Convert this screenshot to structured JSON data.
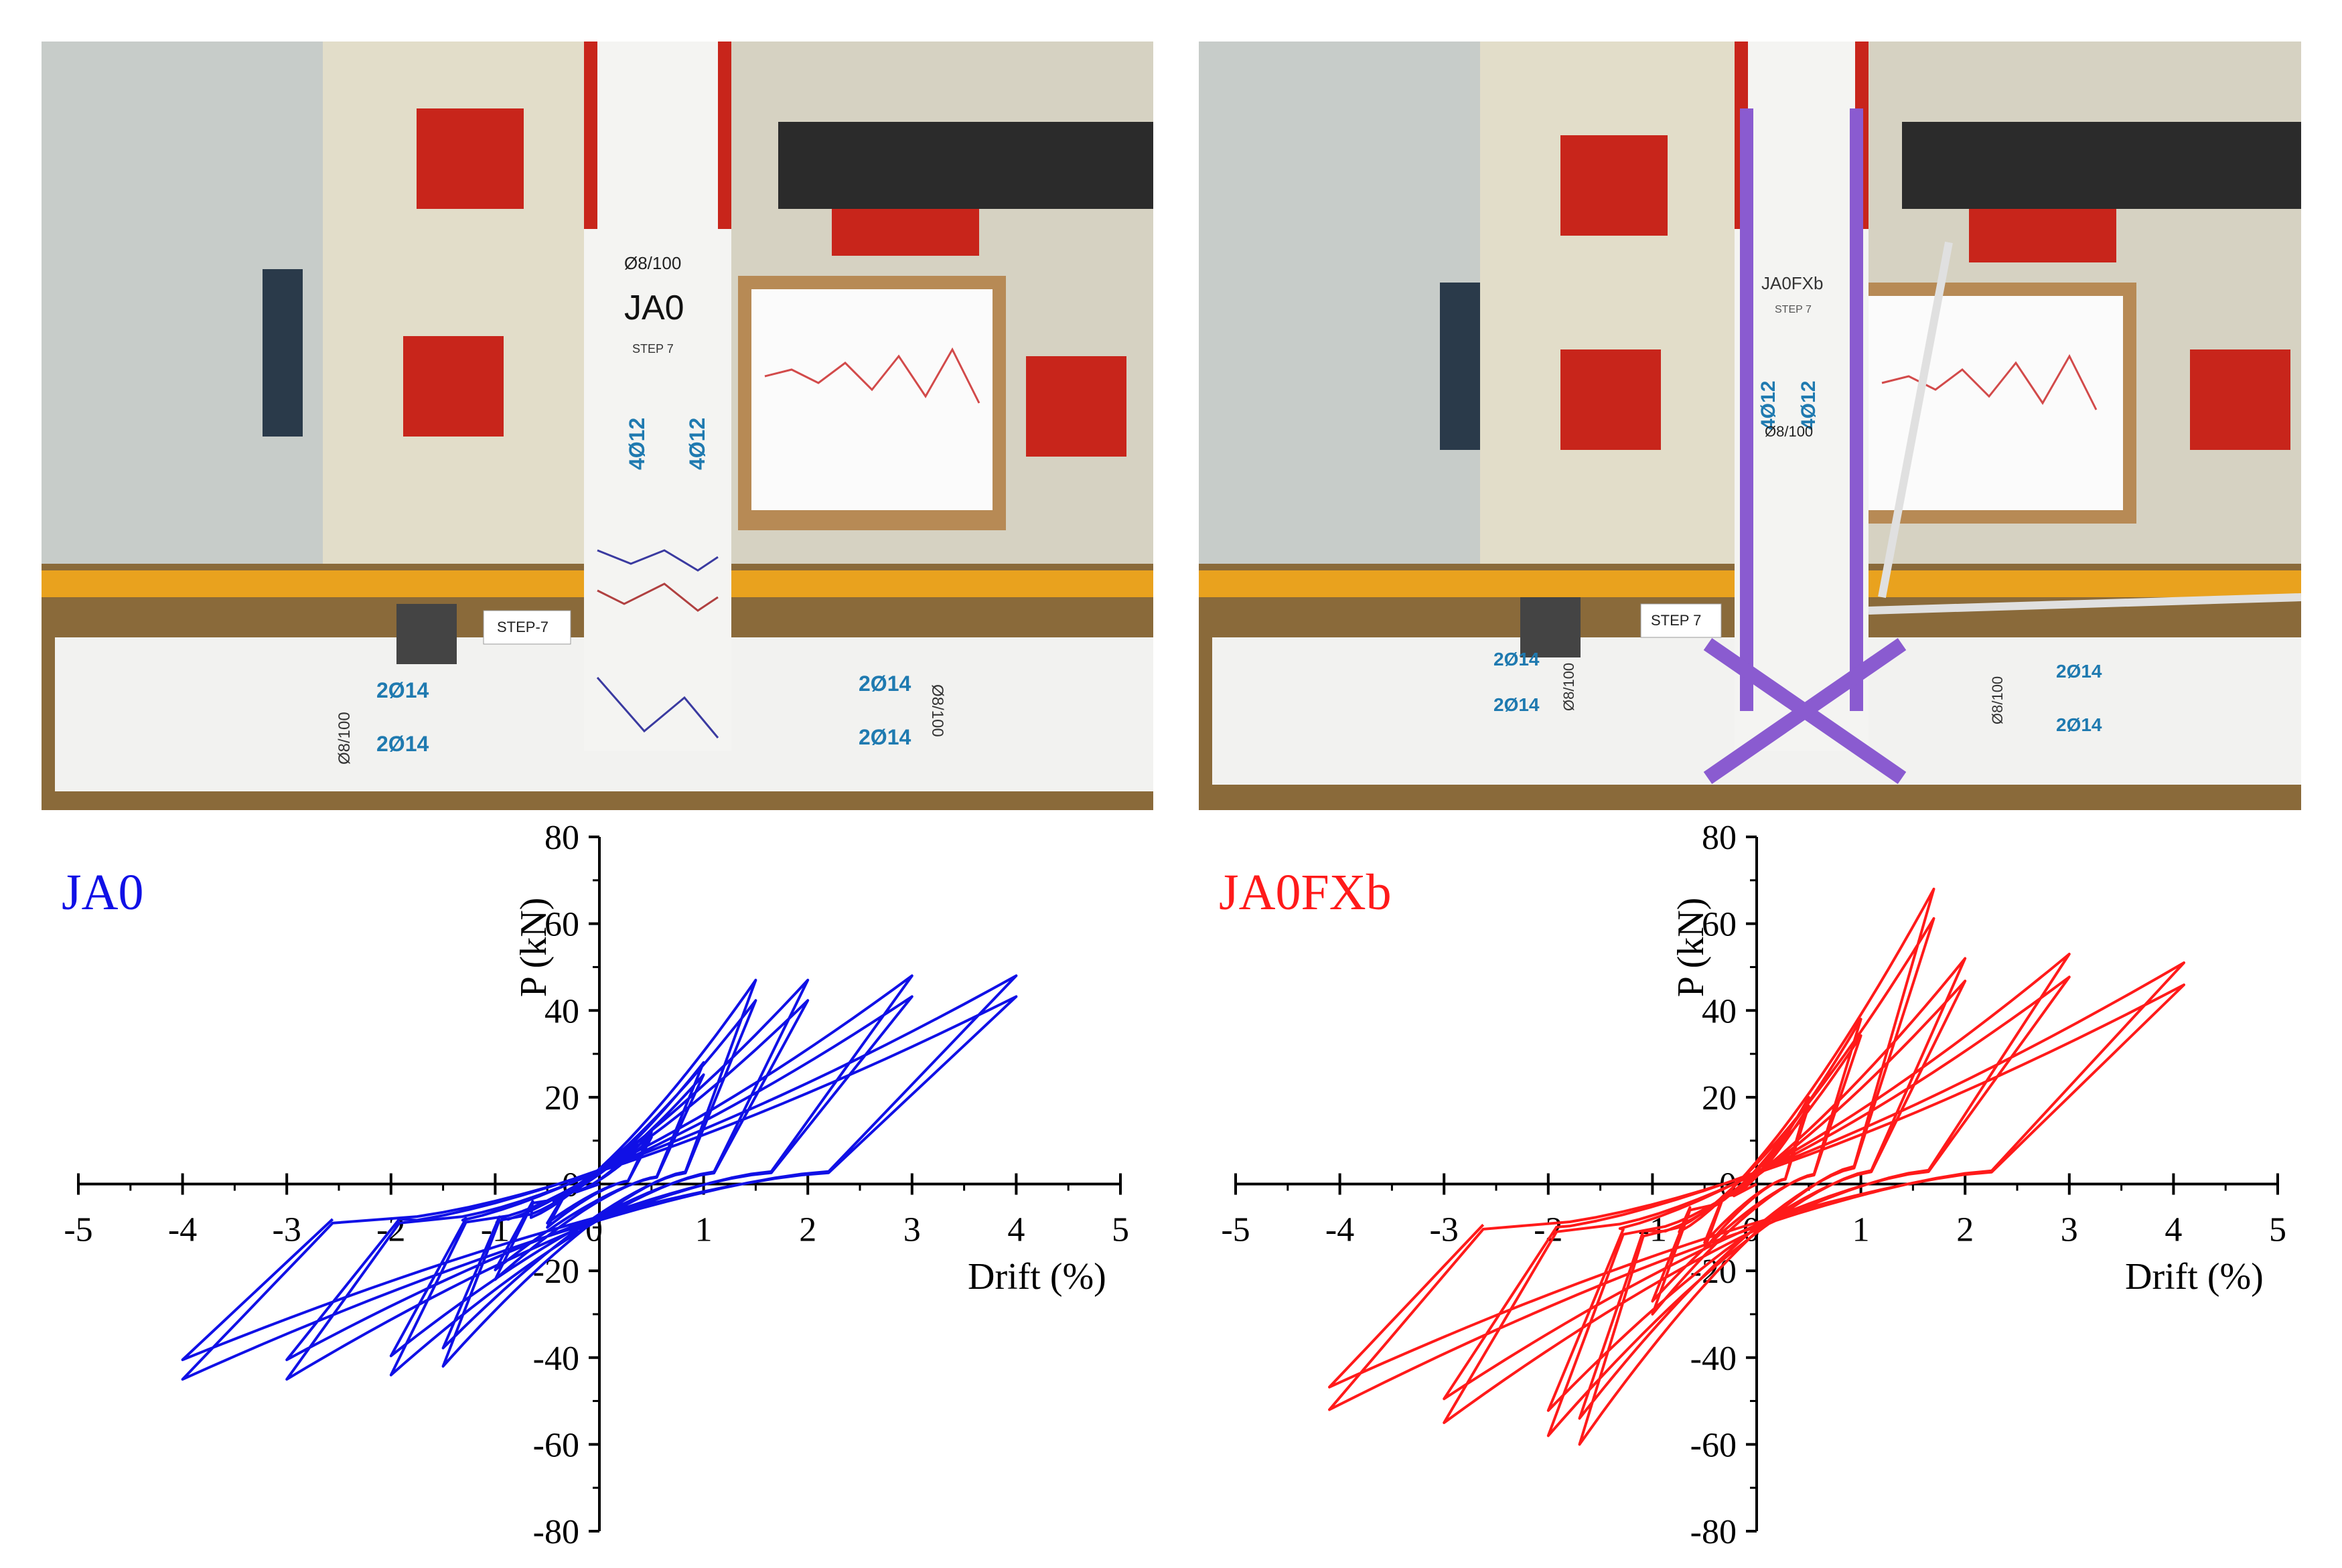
{
  "photos": [
    {
      "specimen_label": "JA0",
      "tags": {
        "stirrups_col": "Ø8/100",
        "step": "STEP 7",
        "bars_col_1": "4Ø12",
        "bars_col_2": "4Ø12",
        "step_sign": "STEP-7",
        "beam_top_left": "2Ø14",
        "beam_bot_left": "2Ø14",
        "beam_top_right": "2Ø14",
        "beam_bot_right": "2Ø14",
        "stirrups_beam_left": "Ø8/100",
        "stirrups_beam_right": "Ø8/100"
      },
      "wrap_color": null
    },
    {
      "specimen_label": "JA0FXb",
      "tags": {
        "stirrups_col": "Ø8/100",
        "step": "STEP 7",
        "bars_col_1": "4Ø12",
        "bars_col_2": "4Ø12",
        "step_sign": "STEP 7",
        "beam_top_left": "2Ø14",
        "beam_bot_left": "2Ø14",
        "beam_top_right": "2Ø14",
        "beam_bot_right": "2Ø14",
        "stirrups_beam_left": "Ø8/100",
        "stirrups_beam_right": "Ø8/100"
      },
      "wrap_color": "#8a5bd0"
    }
  ],
  "chart_data": [
    {
      "type": "line",
      "title": "JA0",
      "xlabel": "Drift (%)",
      "ylabel": "P (kN)",
      "xlim": [
        -5,
        5
      ],
      "ylim": [
        -80,
        80
      ],
      "xticks": [
        -5,
        -4,
        -3,
        -2,
        -1,
        0,
        1,
        2,
        3,
        4,
        5
      ],
      "yticks": [
        -80,
        -60,
        -40,
        -20,
        0,
        20,
        40,
        60,
        80
      ],
      "grid": false,
      "color": "#1010e6",
      "loops": [
        {
          "peak_drift": 0.5,
          "p_pos": 12,
          "p_neg": -10,
          "reps": 2
        },
        {
          "peak_drift": 1.0,
          "p_pos": 28,
          "p_neg": -22,
          "reps": 2
        },
        {
          "peak_drift": 1.5,
          "p_pos": 47,
          "p_neg": -42,
          "reps": 2
        },
        {
          "peak_drift": 2.0,
          "p_pos": 47,
          "p_neg": -44,
          "reps": 2
        },
        {
          "peak_drift": 3.0,
          "p_pos": 48,
          "p_neg": -45,
          "reps": 2
        },
        {
          "peak_drift": 4.0,
          "p_pos": 48,
          "p_neg": -45,
          "reps": 2
        }
      ]
    },
    {
      "type": "line",
      "title": "JA0FXb",
      "xlabel": "Drift (%)",
      "ylabel": "P (kN)",
      "xlim": [
        -5,
        5
      ],
      "ylim": [
        -80,
        80
      ],
      "xticks": [
        -5,
        -4,
        -3,
        -2,
        -1,
        0,
        1,
        2,
        3,
        4,
        5
      ],
      "yticks": [
        -80,
        -60,
        -40,
        -20,
        0,
        20,
        40,
        60,
        80
      ],
      "grid": false,
      "color": "#ff1a1a",
      "loops": [
        {
          "peak_drift": 0.5,
          "p_pos": 20,
          "p_neg": -15,
          "reps": 2
        },
        {
          "peak_drift": 1.0,
          "p_pos": 38,
          "p_neg": -30,
          "reps": 2
        },
        {
          "peak_drift": 1.7,
          "p_pos": 68,
          "p_neg": -60,
          "reps": 2
        },
        {
          "peak_drift": 2.0,
          "p_pos": 52,
          "p_neg": -58,
          "reps": 2
        },
        {
          "peak_drift": 3.0,
          "p_pos": 53,
          "p_neg": -55,
          "reps": 2
        },
        {
          "peak_drift": 4.1,
          "p_pos": 51,
          "p_neg": -52,
          "reps": 2
        }
      ]
    }
  ]
}
